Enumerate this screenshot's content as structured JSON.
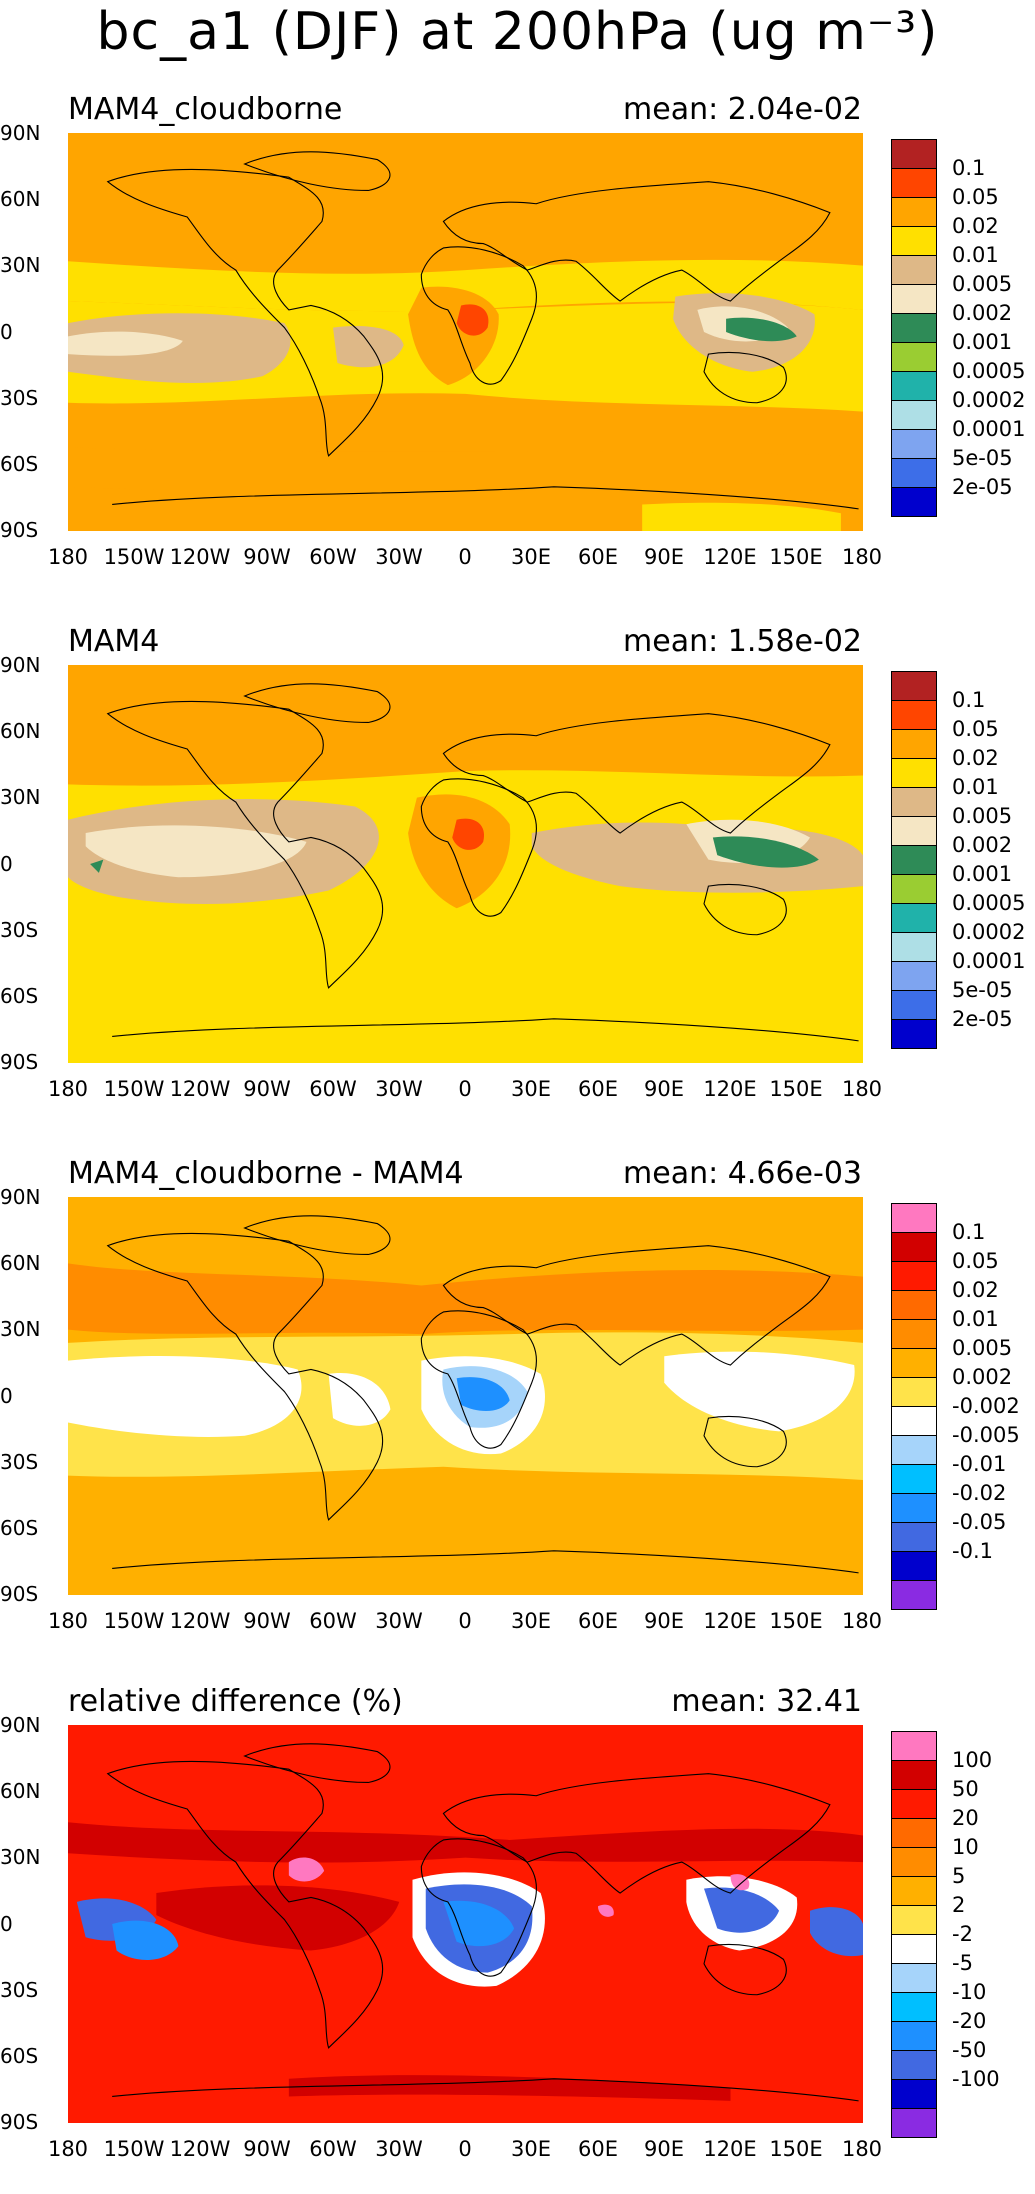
{
  "main_title": "bc_a1 (DJF) at 200hPa (ug m⁻³)",
  "lat_labels": [
    "90N",
    "60N",
    "30N",
    "0",
    "30S",
    "60S",
    "90S"
  ],
  "lon_labels": [
    "180",
    "150W",
    "120W",
    "90W",
    "60W",
    "30W",
    "0",
    "30E",
    "60E",
    "90E",
    "120E",
    "150E",
    "180"
  ],
  "colors": {
    "conc": [
      "#0000cd",
      "#3d6ee8",
      "#7ea4f0",
      "#aedfe6",
      "#20b2aa",
      "#9acd32",
      "#2e8b57",
      "#f5e6c4",
      "#deb887",
      "#ffe000",
      "#ffa500",
      "#ff4500",
      "#b22222"
    ],
    "diff": [
      "#8a2be2",
      "#0000cd",
      "#4169e1",
      "#1e90ff",
      "#00bfff",
      "#a6d4fa",
      "#ffffff",
      "#ffe34a",
      "#ffb000",
      "#ff8c00",
      "#ff6a00",
      "#ff1a00",
      "#d20000",
      "#ff78c0"
    ]
  },
  "panels": [
    {
      "label": "MAM4_cloudborne",
      "mean": "mean: 2.04e-02",
      "scale": "conc",
      "colorbar_labels": [
        "0.1",
        "0.05",
        "0.02",
        "0.01",
        "0.005",
        "0.002",
        "0.001",
        "0.0005",
        "0.0002",
        "0.0001",
        "5e-05",
        "2e-05"
      ]
    },
    {
      "label": "MAM4",
      "mean": "mean: 1.58e-02",
      "scale": "conc",
      "colorbar_labels": [
        "0.1",
        "0.05",
        "0.02",
        "0.01",
        "0.005",
        "0.002",
        "0.001",
        "0.0005",
        "0.0002",
        "0.0001",
        "5e-05",
        "2e-05"
      ]
    },
    {
      "label": "MAM4_cloudborne - MAM4",
      "mean": "mean: 4.66e-03",
      "scale": "diff",
      "colorbar_labels": [
        "0.1",
        "0.05",
        "0.02",
        "0.01",
        "0.005",
        "0.002",
        "-0.002",
        "-0.005",
        "-0.01",
        "-0.02",
        "-0.05",
        "-0.1"
      ]
    },
    {
      "label": "relative difference (%)",
      "mean": "mean: 32.41",
      "scale": "diff",
      "colorbar_labels": [
        "100",
        "50",
        "20",
        "10",
        "5",
        "2",
        "-2",
        "-5",
        "-10",
        "-20",
        "-50",
        "-100"
      ]
    }
  ]
}
